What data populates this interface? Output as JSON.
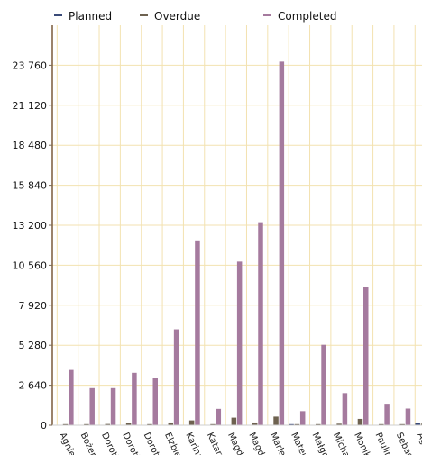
{
  "chart_data": {
    "type": "bar",
    "title": "",
    "xlabel": "",
    "ylabel": "",
    "legend_position": "top",
    "grid": true,
    "ylim": [
      0,
      26400
    ],
    "yticks": [
      0,
      2640,
      5280,
      7920,
      10560,
      13200,
      15840,
      18480,
      21120,
      23760
    ],
    "ytick_labels": [
      "0",
      "2 640",
      "5 280",
      "7 920",
      "10 560",
      "13 200",
      "15 840",
      "18 480",
      "21 120",
      "23 760"
    ],
    "categories": [
      "Agnie",
      "Bożer",
      "Doroti",
      "Doroti",
      "Doroti",
      "Elżbie",
      "Karina",
      "Katarz",
      "Magd",
      "Magd",
      "Marlen",
      "Mateu",
      "Małgo",
      "Michał",
      "Monik",
      "Paulin",
      "Sebas",
      "Agn"
    ],
    "series": [
      {
        "name": "Planned",
        "color": "#3a4a78",
        "values": [
          0,
          0,
          0,
          0,
          0,
          0,
          0,
          0,
          0,
          0,
          0,
          60,
          0,
          0,
          0,
          0,
          0,
          120
        ]
      },
      {
        "name": "Overdue",
        "color": "#6e6250",
        "values": [
          60,
          40,
          80,
          150,
          60,
          180,
          320,
          20,
          500,
          180,
          570,
          30,
          30,
          100,
          420,
          40,
          30,
          100
        ]
      },
      {
        "name": "Completed",
        "color": "#a57a9e",
        "values": [
          3650,
          2450,
          2450,
          3460,
          3140,
          6330,
          12200,
          1080,
          10800,
          13400,
          24000,
          930,
          5310,
          2120,
          9120,
          1420,
          1100,
          0
        ]
      }
    ]
  }
}
